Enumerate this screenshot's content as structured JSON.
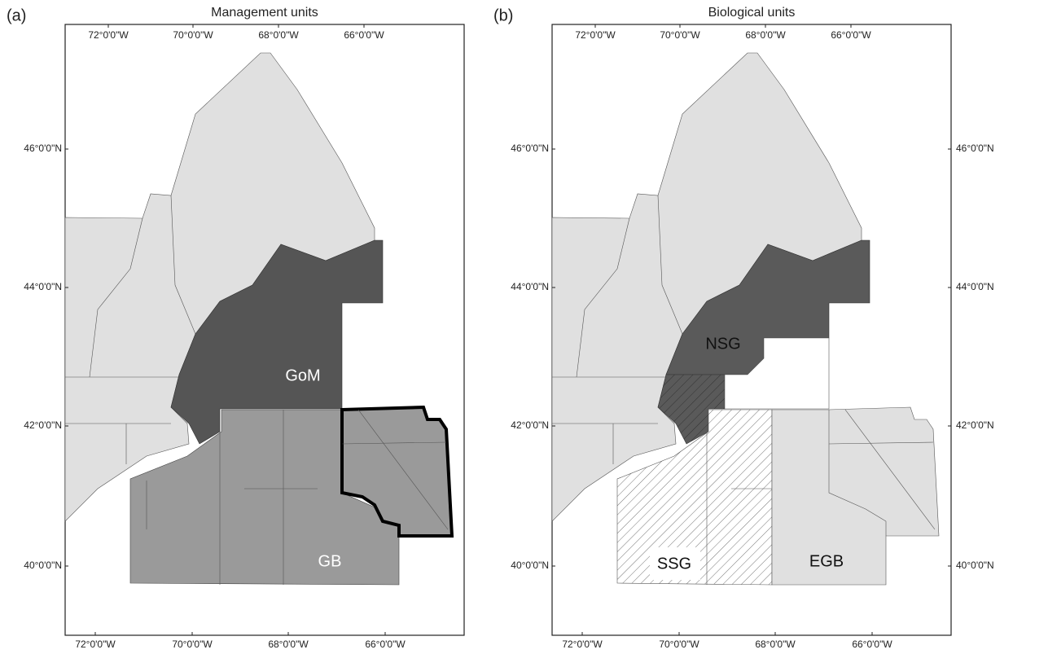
{
  "panels": [
    {
      "label": "(a)",
      "title": "Management units",
      "top_ticks": [
        "72°0'0\"W",
        "70°0'0\"W",
        "68°0'0\"W",
        "66°0'0\"W"
      ],
      "bottom_ticks": [
        "72°0'0\"W",
        "70°0'0\"W",
        "68°0'0\"W",
        "66°0'0\"W"
      ],
      "left_ticks": [
        "46°0'0\"N",
        "44°0'0\"N",
        "42°0'0\"N",
        "40°0'0\"N"
      ],
      "regions": [
        "GoM",
        "GB"
      ]
    },
    {
      "label": "(b)",
      "title": "Biological units",
      "top_ticks": [
        "72°0'0\"W",
        "70°0'0\"W",
        "68°0'0\"W",
        "66°0'0\"W"
      ],
      "bottom_ticks": [
        "72°0'0\"W",
        "70°0'0\"W",
        "68°0'0\"W",
        "66°0'0\"W"
      ],
      "left_ticks": [
        "46°0'0\"N",
        "44°0'0\"N",
        "42°0'0\"N",
        "40°0'0\"N"
      ],
      "right_ticks": [
        "46°0'0\"N",
        "44°0'0\"N",
        "42°0'0\"N",
        "40°0'0\"N"
      ],
      "regions": [
        "NSG",
        "SSG",
        "EGB"
      ]
    }
  ]
}
